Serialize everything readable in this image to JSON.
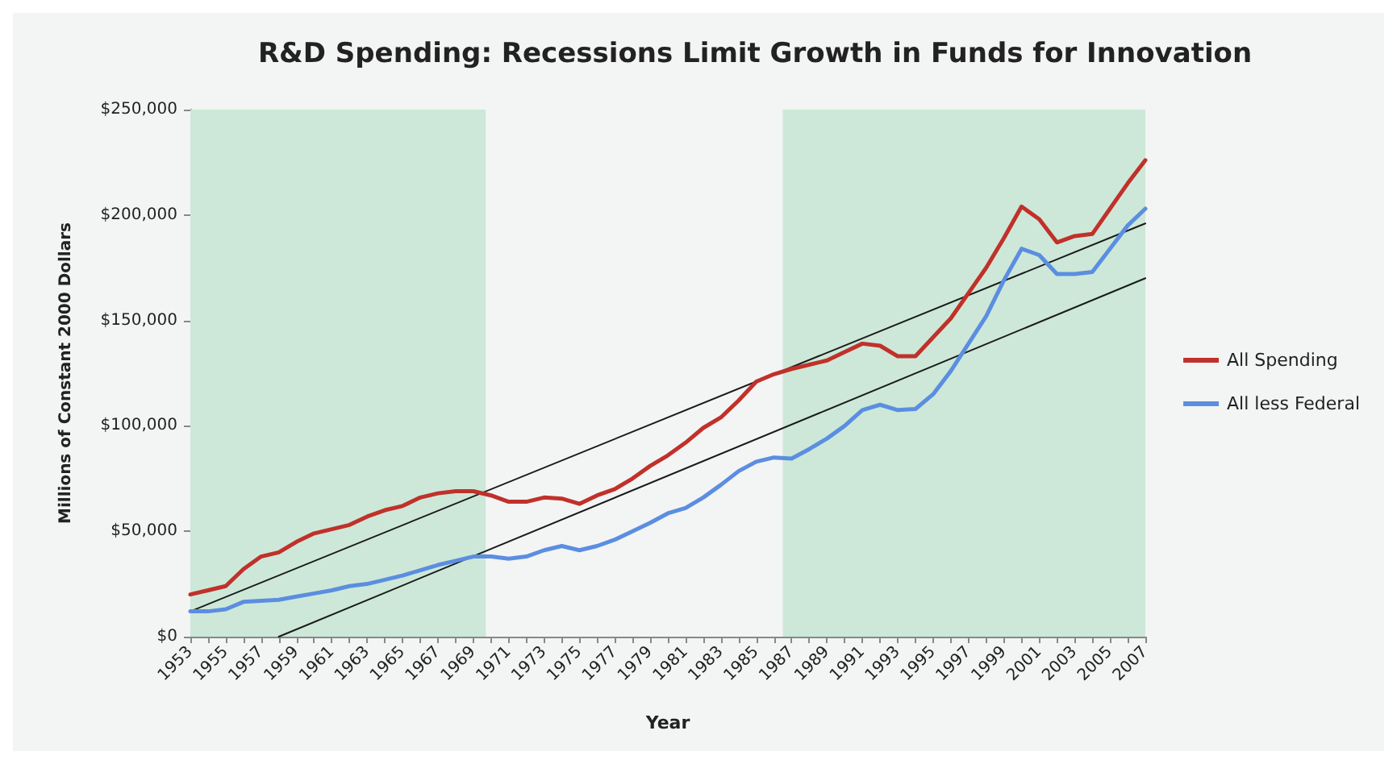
{
  "chart_data": {
    "type": "line",
    "title": "R&D Spending: Recessions Limit Growth in Funds for Innovation",
    "xlabel": "Year",
    "ylabel": "Millions of Constant 2000 Dollars",
    "x": [
      1953,
      1954,
      1955,
      1956,
      1957,
      1958,
      1959,
      1960,
      1961,
      1962,
      1963,
      1964,
      1965,
      1966,
      1967,
      1968,
      1969,
      1970,
      1971,
      1972,
      1973,
      1974,
      1975,
      1976,
      1977,
      1978,
      1979,
      1980,
      1981,
      1982,
      1983,
      1984,
      1985,
      1986,
      1987,
      1988,
      1989,
      1990,
      1991,
      1992,
      1993,
      1994,
      1995,
      1996,
      1997,
      1998,
      1999,
      2000,
      2001,
      2002,
      2003,
      2004,
      2005,
      2006,
      2007
    ],
    "series": [
      {
        "name": "All Spending",
        "color": "#c0312a",
        "values": [
          20000,
          22000,
          24000,
          32000,
          38000,
          40000,
          45000,
          49000,
          51000,
          53000,
          57000,
          60000,
          62000,
          66000,
          68000,
          69000,
          69000,
          67000,
          64000,
          64000,
          66000,
          65500,
          63000,
          67000,
          70000,
          75000,
          81000,
          86000,
          92000,
          99000,
          104000,
          112000,
          121000,
          124500,
          127000,
          129000,
          131000,
          135000,
          139000,
          138000,
          133000,
          133000,
          142000,
          151000,
          163000,
          175000,
          189000,
          204000,
          198000,
          187000,
          190000,
          191000,
          203000,
          215000,
          226000
        ]
      },
      {
        "name": "All less Federal",
        "color": "#5b8ee0",
        "values": [
          12000,
          12000,
          13000,
          16500,
          17000,
          17500,
          19000,
          20500,
          22000,
          24000,
          25000,
          27000,
          29000,
          31500,
          34000,
          36000,
          38000,
          38000,
          37000,
          38000,
          41000,
          43000,
          41000,
          43000,
          46000,
          50000,
          54000,
          58500,
          61000,
          66000,
          72000,
          78500,
          83000,
          85000,
          84500,
          89000,
          94000,
          100000,
          107500,
          110000,
          107500,
          108000,
          115000,
          126000,
          139000,
          152000,
          169000,
          184000,
          181000,
          172000,
          172000,
          173000,
          184000,
          195000,
          203000
        ]
      },
      {
        "type": "line",
        "color": "#1a1a1a",
        "x": [
          1953,
          2007
        ],
        "values": [
          12000,
          196000
        ]
      },
      {
        "type": "line",
        "color": "#1a1a1a",
        "x": [
          1958,
          2007
        ],
        "values": [
          0,
          170000
        ]
      }
    ],
    "xlim": [
      1953,
      2007
    ],
    "xticks": [
      1953,
      {
        "value": 1954,
        "label": null
      },
      1955,
      {
        "value": 1956,
        "label": null
      },
      1957,
      {
        "value": 1958,
        "label": null
      },
      1959,
      {
        "value": 1960,
        "label": null
      },
      1961,
      {
        "value": 1962,
        "label": null
      },
      1963,
      {
        "value": 1964,
        "label": null
      },
      1965,
      {
        "value": 1966,
        "label": null
      },
      1967,
      {
        "value": 1968,
        "label": null
      },
      1969,
      {
        "value": 1970,
        "label": null
      },
      1971,
      {
        "value": 1972,
        "label": null
      },
      1973,
      {
        "value": 1974,
        "label": null
      },
      1975,
      {
        "value": 1976,
        "label": null
      },
      1977,
      {
        "value": 1978,
        "label": null
      },
      1979,
      {
        "value": 1980,
        "label": null
      },
      1981,
      {
        "value": 1982,
        "label": null
      },
      1983,
      {
        "value": 1984,
        "label": null
      },
      1985,
      {
        "value": 1986,
        "label": null
      },
      1987,
      {
        "value": 1988,
        "label": null
      },
      1989,
      {
        "value": 1990,
        "label": null
      },
      1991,
      {
        "value": 1992,
        "label": null
      },
      1993,
      {
        "value": 1994,
        "label": null
      },
      1995,
      {
        "value": 1996,
        "label": null
      },
      1997,
      {
        "value": 1998,
        "label": null
      },
      1999,
      {
        "value": 2000,
        "label": null
      },
      2001,
      {
        "value": 2002,
        "label": null
      },
      2003,
      {
        "value": 2004,
        "label": null
      },
      2005,
      {
        "value": 2006,
        "label": null
      },
      2007
    ],
    "ylim": [
      0,
      250000
    ],
    "yticks": [
      {
        "value": 0,
        "label": "$0"
      },
      {
        "value": 50000,
        "label": "$50,000"
      },
      {
        "value": 100000,
        "label": "$100,000"
      },
      {
        "value": 150000,
        "label": "$150,000"
      },
      {
        "value": 200000,
        "label": "$200,000"
      },
      {
        "value": 250000,
        "label": "$250,000"
      }
    ],
    "bands": [
      {
        "axis": "x",
        "from": 1953,
        "to": 1969.7,
        "color": "#cde8d8"
      },
      {
        "axis": "x",
        "from": 1986.5,
        "to": 2007,
        "color": "#cde8d8"
      }
    ],
    "grid": false,
    "legend": "right",
    "marker": "none",
    "line_style": "solid"
  }
}
